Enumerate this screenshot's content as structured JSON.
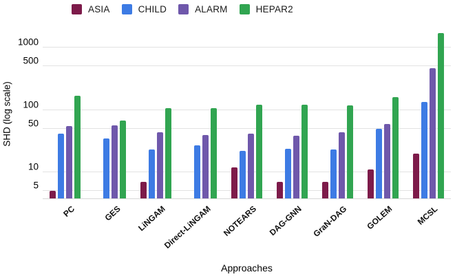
{
  "legend": {
    "items": [
      {
        "label": "ASIA",
        "color": "#7d1b4a"
      },
      {
        "label": "CHILD",
        "color": "#3d7be4"
      },
      {
        "label": "ALARM",
        "color": "#6f58ab"
      },
      {
        "label": "HEPAR2",
        "color": "#31a551"
      }
    ]
  },
  "chart_data": {
    "type": "bar",
    "title": "",
    "xlabel": "Approaches",
    "ylabel": "SHD (log scale)",
    "yscale": "log",
    "ylim": [
      3.8,
      1850
    ],
    "y_ticks": [
      5,
      10,
      50,
      100,
      500,
      1000
    ],
    "grid": true,
    "legend_position": "top",
    "categories": [
      "PC",
      "GES",
      "LiNGAM",
      "Direct-LiNGAM",
      "NOTEARS",
      "DAG-GNN",
      "GraN-DAG",
      "GOLEM",
      "MCSL"
    ],
    "series": [
      {
        "name": "ASIA",
        "color": "#7d1b4a",
        "values": [
          5,
          null,
          7,
          null,
          12,
          7,
          7,
          11,
          20
        ]
      },
      {
        "name": "CHILD",
        "color": "#3d7be4",
        "values": [
          42,
          35,
          23,
          27,
          22,
          24,
          23,
          50,
          135
        ]
      },
      {
        "name": "ALARM",
        "color": "#6f58ab",
        "values": [
          55,
          57,
          44,
          40,
          42,
          39,
          44,
          60,
          465
        ]
      },
      {
        "name": "HEPAR2",
        "color": "#31a551",
        "values": [
          170,
          68,
          108,
          107,
          120,
          120,
          118,
          160,
          1700
        ]
      }
    ]
  }
}
